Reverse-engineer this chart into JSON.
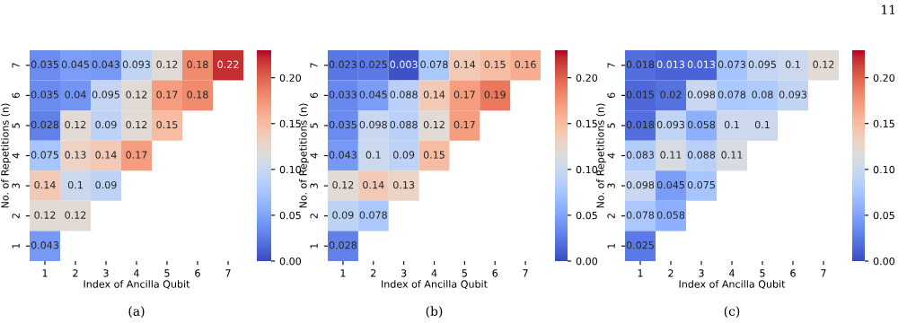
{
  "chart_data": [
    {
      "type": "heatmap",
      "xlabel": "Index of Ancilla Qubit",
      "ylabel": "No. of Repetitions (n)",
      "categories": [
        "1",
        "2",
        "3",
        "4",
        "5",
        "6",
        "7"
      ],
      "y_categories": [
        "7",
        "6",
        "5",
        "4",
        "3",
        "2",
        "1"
      ],
      "clim": [
        0,
        0.23
      ],
      "cticks": [
        {
          "value": 0,
          "label": "0.00"
        },
        {
          "value": 0.05,
          "label": "0.05"
        },
        {
          "value": 0.1,
          "label": "0.10"
        },
        {
          "value": 0.15,
          "label": "0.15"
        },
        {
          "value": 0.2,
          "label": "0.20"
        }
      ],
      "data_labels": true,
      "annotations": [
        "(a)"
      ],
      "cells": [
        [
          0.035,
          0.045,
          0.043,
          0.093,
          0.12,
          0.18,
          0.22
        ],
        [
          0.035,
          0.04,
          0.095,
          0.12,
          0.17,
          0.18,
          null
        ],
        [
          0.028,
          0.12,
          0.09,
          0.12,
          0.15,
          null,
          null
        ],
        [
          0.075,
          0.13,
          0.14,
          0.17,
          null,
          null,
          null
        ],
        [
          0.14,
          0.1,
          0.09,
          null,
          null,
          null,
          null
        ],
        [
          0.12,
          0.12,
          null,
          null,
          null,
          null,
          null
        ],
        [
          0.043,
          null,
          null,
          null,
          null,
          null,
          null
        ]
      ]
    },
    {
      "type": "heatmap",
      "xlabel": "Index of Ancilla Qubit",
      "ylabel": "No. of Repetitions (n)",
      "categories": [
        "1",
        "2",
        "3",
        "4",
        "5",
        "6",
        "7"
      ],
      "y_categories": [
        "7",
        "6",
        "5",
        "4",
        "3",
        "2",
        "1"
      ],
      "clim": [
        0,
        0.23
      ],
      "cticks": [
        {
          "value": 0,
          "label": "0.00"
        },
        {
          "value": 0.05,
          "label": "0.05"
        },
        {
          "value": 0.1,
          "label": "0.10"
        },
        {
          "value": 0.15,
          "label": "0.15"
        },
        {
          "value": 0.2,
          "label": "0.20"
        }
      ],
      "data_labels": true,
      "annotations": [
        "(b)"
      ],
      "cells": [
        [
          0.023,
          0.025,
          0.003,
          0.078,
          0.14,
          0.15,
          0.16
        ],
        [
          0.033,
          0.045,
          0.088,
          0.14,
          0.17,
          0.19,
          null
        ],
        [
          0.035,
          0.098,
          0.088,
          0.12,
          0.17,
          null,
          null
        ],
        [
          0.043,
          0.1,
          0.09,
          0.15,
          null,
          null,
          null
        ],
        [
          0.12,
          0.14,
          0.13,
          null,
          null,
          null,
          null
        ],
        [
          0.09,
          0.078,
          null,
          null,
          null,
          null,
          null
        ],
        [
          0.028,
          null,
          null,
          null,
          null,
          null,
          null
        ]
      ]
    },
    {
      "type": "heatmap",
      "xlabel": "Index of Ancilla Qubit",
      "ylabel": "No. of Repetitions (n)",
      "categories": [
        "1",
        "2",
        "3",
        "4",
        "5",
        "6",
        "7"
      ],
      "y_categories": [
        "7",
        "6",
        "5",
        "4",
        "3",
        "2",
        "1"
      ],
      "clim": [
        0,
        0.23
      ],
      "cticks": [
        {
          "value": 0,
          "label": "0.00"
        },
        {
          "value": 0.05,
          "label": "0.05"
        },
        {
          "value": 0.1,
          "label": "0.10"
        },
        {
          "value": 0.15,
          "label": "0.15"
        },
        {
          "value": 0.2,
          "label": "0.20"
        }
      ],
      "data_labels": true,
      "annotations": [
        "(c)",
        "11"
      ],
      "cells": [
        [
          0.018,
          0.013,
          0.013,
          0.073,
          0.095,
          0.1,
          0.12
        ],
        [
          0.015,
          0.02,
          0.098,
          0.078,
          0.08,
          0.093,
          null
        ],
        [
          0.018,
          0.093,
          0.058,
          0.1,
          0.1,
          null,
          null
        ],
        [
          0.083,
          0.11,
          0.088,
          0.11,
          null,
          null,
          null
        ],
        [
          0.098,
          0.045,
          0.075,
          null,
          null,
          null,
          null
        ],
        [
          0.078,
          0.058,
          null,
          null,
          null,
          null,
          null
        ],
        [
          0.025,
          null,
          null,
          null,
          null,
          null,
          null
        ]
      ]
    }
  ]
}
